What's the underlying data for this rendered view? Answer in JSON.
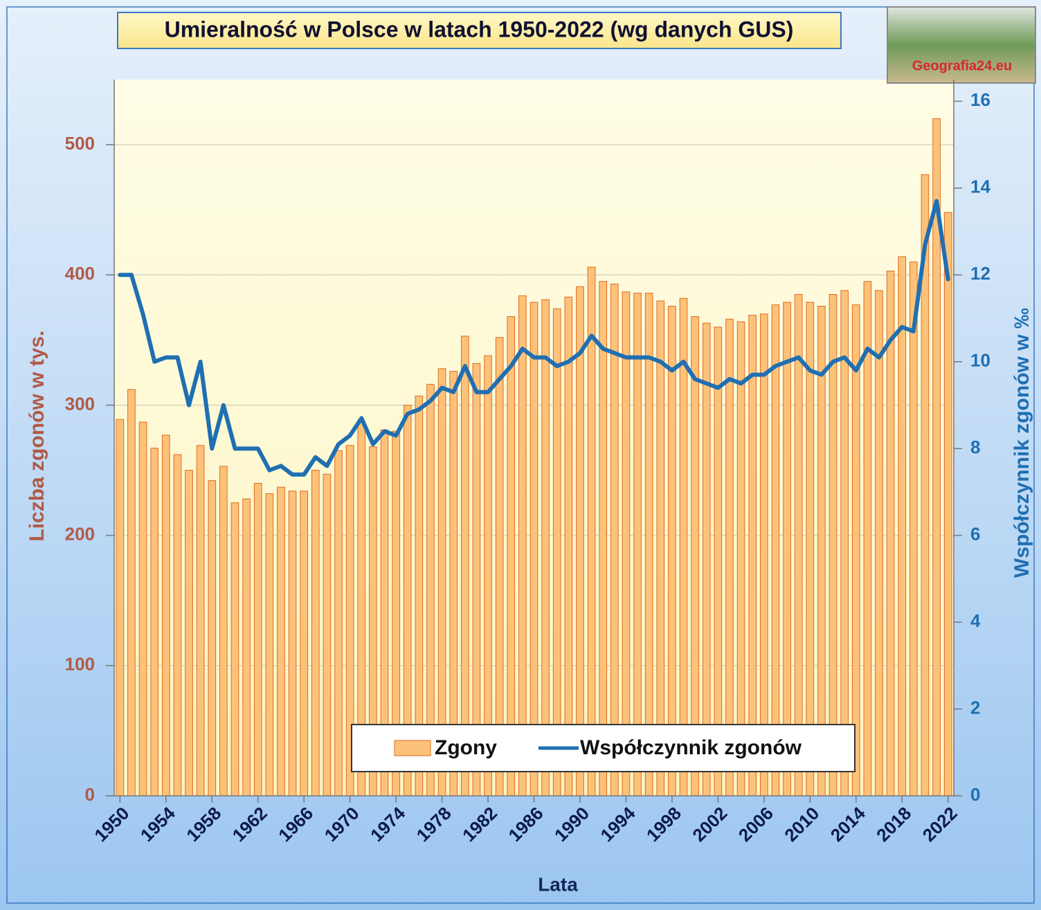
{
  "chart_data": {
    "type": "bar+line",
    "title": "Umieralność w Polsce w latach 1950-2022 (wg danych GUS)",
    "logo": "Geografia24.eu",
    "xlabel": "Lata",
    "ylabel": "Liczba zgonów w tys.",
    "y2label": "Współczynnik zgonów w ‰",
    "categories": [
      "1950",
      null,
      null,
      null,
      "1954",
      null,
      null,
      null,
      "1958",
      null,
      null,
      null,
      "1962",
      null,
      null,
      null,
      "1966",
      null,
      null,
      null,
      "1970",
      null,
      null,
      null,
      "1974",
      null,
      null,
      null,
      "1978",
      null,
      null,
      null,
      "1982",
      null,
      null,
      null,
      "1986",
      null,
      null,
      null,
      "1990",
      null,
      null,
      null,
      "1994",
      null,
      null,
      null,
      "1998",
      null,
      null,
      null,
      "2002",
      null,
      null,
      null,
      "2006",
      null,
      null,
      null,
      "2010",
      null,
      null,
      null,
      "2014",
      null,
      null,
      null,
      "2018",
      null,
      null,
      null,
      "2022"
    ],
    "series": [
      {
        "name": "Zgony",
        "type": "bar",
        "color": "#fcc27a",
        "values": [
          289,
          312,
          287,
          267,
          277,
          262,
          250,
          269,
          242,
          253,
          225,
          228,
          240,
          232,
          237,
          234,
          234,
          250,
          247,
          265,
          269,
          287,
          268,
          281,
          280,
          300,
          307,
          316,
          328,
          326,
          353,
          332,
          338,
          352,
          368,
          384,
          379,
          381,
          374,
          383,
          391,
          406,
          395,
          393,
          387,
          386,
          386,
          380,
          376,
          382,
          368,
          363,
          360,
          366,
          364,
          369,
          370,
          377,
          379,
          385,
          379,
          376,
          385,
          388,
          377,
          395,
          388,
          403,
          414,
          410,
          477,
          520,
          448
        ]
      },
      {
        "name": "Współczynnik zgonów",
        "type": "line",
        "axis": "y2",
        "color": "#1f6fb2",
        "values": [
          12.0,
          12.0,
          11.1,
          10.0,
          10.1,
          10.1,
          9.0,
          10.0,
          8.0,
          9.0,
          8.0,
          8.0,
          8.0,
          7.5,
          7.6,
          7.4,
          7.4,
          7.8,
          7.6,
          8.1,
          8.3,
          8.7,
          8.1,
          8.4,
          8.3,
          8.8,
          8.9,
          9.1,
          9.4,
          9.3,
          9.9,
          9.3,
          9.3,
          9.6,
          9.9,
          10.3,
          10.1,
          10.1,
          9.9,
          10.0,
          10.2,
          10.6,
          10.3,
          10.2,
          10.1,
          10.1,
          10.1,
          10.0,
          9.8,
          10.0,
          9.6,
          9.5,
          9.4,
          9.6,
          9.5,
          9.7,
          9.7,
          9.9,
          10.0,
          10.1,
          9.8,
          9.7,
          10.0,
          10.1,
          9.8,
          10.3,
          10.1,
          10.5,
          10.8,
          10.7,
          12.7,
          13.7,
          11.9
        ]
      }
    ],
    "ylim": [
      0,
      550
    ],
    "yticks": [
      0,
      100,
      200,
      300,
      400,
      500
    ],
    "y2lim": [
      0,
      16.5
    ],
    "y2ticks": [
      0,
      2,
      4,
      6,
      8,
      10,
      12,
      14,
      16
    ],
    "grid": true
  }
}
